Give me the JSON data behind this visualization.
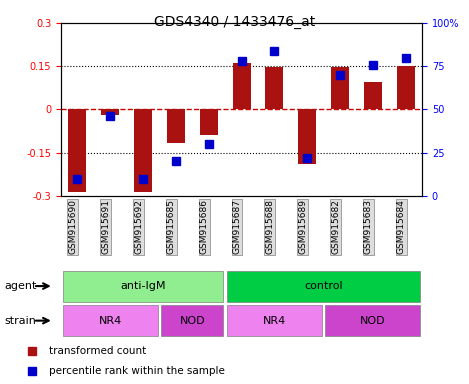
{
  "title": "GDS4340 / 1433476_at",
  "samples": [
    "GSM915690",
    "GSM915691",
    "GSM915692",
    "GSM915685",
    "GSM915686",
    "GSM915687",
    "GSM915688",
    "GSM915689",
    "GSM915682",
    "GSM915683",
    "GSM915684"
  ],
  "red_values": [
    -0.285,
    -0.02,
    -0.285,
    -0.115,
    -0.09,
    0.16,
    0.148,
    -0.19,
    0.148,
    0.095,
    0.15
  ],
  "blue_values_pct": [
    10,
    46,
    10,
    20,
    30,
    78,
    84,
    22,
    70,
    76,
    80
  ],
  "ylim": [
    -0.3,
    0.3
  ],
  "yticks_left": [
    -0.3,
    -0.15,
    0,
    0.15,
    0.3
  ],
  "yticks_right": [
    0,
    25,
    50,
    75,
    100
  ],
  "yticks_right_labels": [
    "0",
    "25",
    "50",
    "75",
    "100%"
  ],
  "agent_groups": [
    {
      "label": "anti-IgM",
      "start": 0,
      "end": 5,
      "color": "#90EE90"
    },
    {
      "label": "control",
      "start": 5,
      "end": 11,
      "color": "#00CC44"
    }
  ],
  "strain_groups": [
    {
      "label": "NR4",
      "start": 0,
      "end": 3,
      "color": "#EE82EE"
    },
    {
      "label": "NOD",
      "start": 3,
      "end": 5,
      "color": "#CC44CC"
    },
    {
      "label": "NR4",
      "start": 5,
      "end": 8,
      "color": "#EE82EE"
    },
    {
      "label": "NOD",
      "start": 8,
      "end": 11,
      "color": "#CC44CC"
    }
  ],
  "red_color": "#AA1111",
  "blue_color": "#0000CC",
  "bar_width": 0.55,
  "blue_marker_size": 6,
  "legend_red_label": "transformed count",
  "legend_blue_label": "percentile rank within the sample",
  "hline_color": "#CC0000",
  "dotted_color": "black",
  "agent_label": "agent",
  "strain_label": "strain",
  "sample_box_color": "#DDDDDD",
  "sample_box_edge": "gray"
}
